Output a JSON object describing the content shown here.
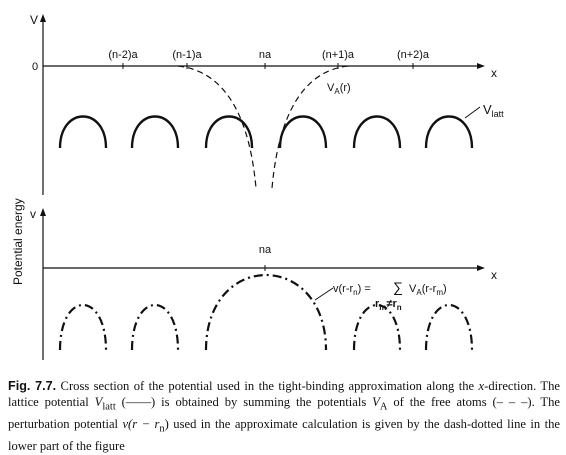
{
  "figure": {
    "y_axis_label": "Potential energy",
    "upper": {
      "axis_v": "V",
      "axis_x": "x",
      "zero": "0",
      "ticks": [
        "(n-2)a",
        "(n-1)a",
        "na",
        "(n+1)a",
        "(n+2)a"
      ],
      "va_label_main": "V",
      "va_label_sub": "A",
      "va_label_arg": "(r)",
      "vlatt_main": "V",
      "vlatt_sub": "latt"
    },
    "lower": {
      "axis_v": "v",
      "axis_x": "x",
      "tick": "na",
      "eq_lhs": "v(r-r",
      "eq_lhs_sub": "n",
      "eq_mid": ") = ",
      "eq_sum": "∑",
      "eq_under": "r",
      "eq_under_sub1": "m",
      "eq_under_ne": "≠",
      "eq_under_r2": "r",
      "eq_under_sub2": "n",
      "eq_rhs_v": "V",
      "eq_rhs_sub": "A",
      "eq_rhs_arg": "(r-r",
      "eq_rhs_sub2": "m",
      "eq_rhs_close": ")"
    }
  },
  "caption": {
    "lead": "Fig. 7.7.",
    "t1": " Cross section of the potential used in the tight-binding approximation along the ",
    "x": "x",
    "t2": "-direction. The lattice potential ",
    "vlatt_v": "V",
    "vlatt_sub": "latt",
    "t3": " (——) is obtained by summing the potentials ",
    "va_v": "V",
    "va_sub": "A",
    "t4": " of the free atoms (– – –). The perturbation potential ",
    "pert": "v(r − r",
    "pert_sub": "n",
    "pert_close": ")",
    "t5": " used in the approximate calculation is given by the dash-dotted line in the lower part of the figure"
  }
}
